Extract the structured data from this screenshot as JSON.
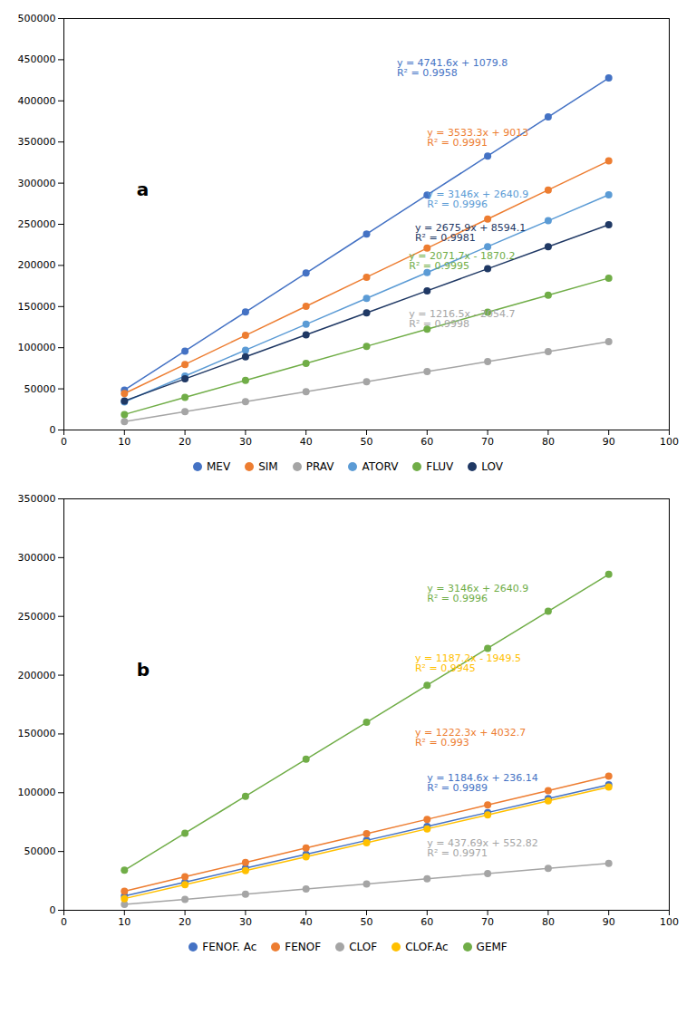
{
  "chart_data": [
    {
      "type": "scatter",
      "title": "a",
      "x": [
        10,
        20,
        30,
        40,
        50,
        60,
        70,
        80,
        90
      ],
      "xlim": [
        0,
        100
      ],
      "ylim": [
        0,
        500000
      ],
      "xticks": [
        0,
        10,
        20,
        30,
        40,
        50,
        60,
        70,
        80,
        90,
        100
      ],
      "yticks": [
        0,
        50000,
        100000,
        150000,
        200000,
        250000,
        300000,
        350000,
        400000,
        450000,
        500000
      ],
      "grid": false,
      "legend": "bottom",
      "marker": "circle",
      "line_style": "solid",
      "series": [
        {
          "name": "MEV",
          "color": "#4472C4",
          "values": [
            48495.8,
            95911.8,
            143327.8,
            190743.8,
            238159.8,
            285575.8,
            332991.8,
            380407.8,
            427823.8
          ],
          "annotation": "y = 4741.6x + 1079.8\nR² = 0.9958"
        },
        {
          "name": "SIM",
          "color": "#ED7D31",
          "values": [
            44346,
            79679,
            115012,
            150345,
            185678,
            221011,
            256344,
            291677,
            327010
          ],
          "annotation": "y = 3533.3x + 9013\nR² = 0.9991"
        },
        {
          "name": "PRAV",
          "color": "#A5A5A5",
          "values": [
            10110.3,
            22275.3,
            34440.3,
            46605.3,
            58770.3,
            70935.3,
            83100.3,
            95265.3,
            107430.3
          ],
          "annotation": "y = 1216.5x - 2054.7\nR² = 0.9998"
        },
        {
          "name": "ATORV",
          "color": "#5B9BD5",
          "values": [
            34100.9,
            65560.9,
            97020.9,
            128480.9,
            159940.9,
            191400.9,
            222860.9,
            254320.9,
            285780.9
          ],
          "annotation": "y = 3146x + 2640.9\nR² = 0.9996"
        },
        {
          "name": "FLUV",
          "color": "#70AD47",
          "values": [
            18846.8,
            39563.8,
            60280.8,
            80997.8,
            101714.8,
            122431.8,
            143148.8,
            163865.8,
            184582.8
          ],
          "annotation": "y = 2071.7x - 1870.2\nR² = 0.9995"
        },
        {
          "name": "LOV",
          "color": "#1F3864",
          "values": [
            35353.1,
            62112.1,
            88871.1,
            115630.1,
            142389.1,
            169148.1,
            195907.1,
            222666.1,
            249425.1
          ],
          "annotation": "y = 2675.9x + 8594.1\nR² = 0.9981"
        }
      ]
    },
    {
      "type": "scatter",
      "title": "b",
      "x": [
        10,
        20,
        30,
        40,
        50,
        60,
        70,
        80,
        90
      ],
      "xlim": [
        0,
        100
      ],
      "ylim": [
        0,
        350000
      ],
      "xticks": [
        0,
        10,
        20,
        30,
        40,
        50,
        60,
        70,
        80,
        90,
        100
      ],
      "yticks": [
        0,
        50000,
        100000,
        150000,
        200000,
        250000,
        300000,
        350000
      ],
      "grid": false,
      "legend": "bottom",
      "marker": "circle",
      "line_style": "solid",
      "series": [
        {
          "name": "FENOF. Ac",
          "color": "#4472C4",
          "values": [
            12082.14,
            23928.14,
            35774.14,
            47620.14,
            59466.14,
            71312.14,
            83158.14,
            95004.14,
            106850.14
          ],
          "annotation": "y = 1184.6x + 236.14\nR² = 0.9989"
        },
        {
          "name": "FENOF",
          "color": "#ED7D31",
          "values": [
            16255.7,
            28478.7,
            40701.7,
            52924.7,
            65147.7,
            77370.7,
            89593.7,
            101816.7,
            114039.7
          ],
          "annotation": "y = 1222.3x + 4032.7\nR² = 0.993"
        },
        {
          "name": "CLOF",
          "color": "#A5A5A5",
          "values": [
            4929.72,
            9306.62,
            13683.52,
            18060.42,
            22437.32,
            26814.22,
            31191.12,
            35568.02,
            39944.92
          ],
          "annotation": "y = 437.69x + 552.82\nR² = 0.9971"
        },
        {
          "name": "CLOF.Ac",
          "color": "#FFC000",
          "values": [
            9922.5,
            21794.5,
            33666.5,
            45538.5,
            57410.5,
            69282.5,
            81154.5,
            93026.5,
            104898.5
          ],
          "annotation": "y = 1187.2x - 1949.5\nR² = 0.9945"
        },
        {
          "name": "GEMF",
          "color": "#70AD47",
          "values": [
            34100.9,
            65560.9,
            97020.9,
            128480.9,
            159940.9,
            191400.9,
            222860.9,
            254320.9,
            285780.9
          ],
          "annotation": "y = 3146x + 2640.9\nR² = 0.9996"
        }
      ]
    }
  ]
}
